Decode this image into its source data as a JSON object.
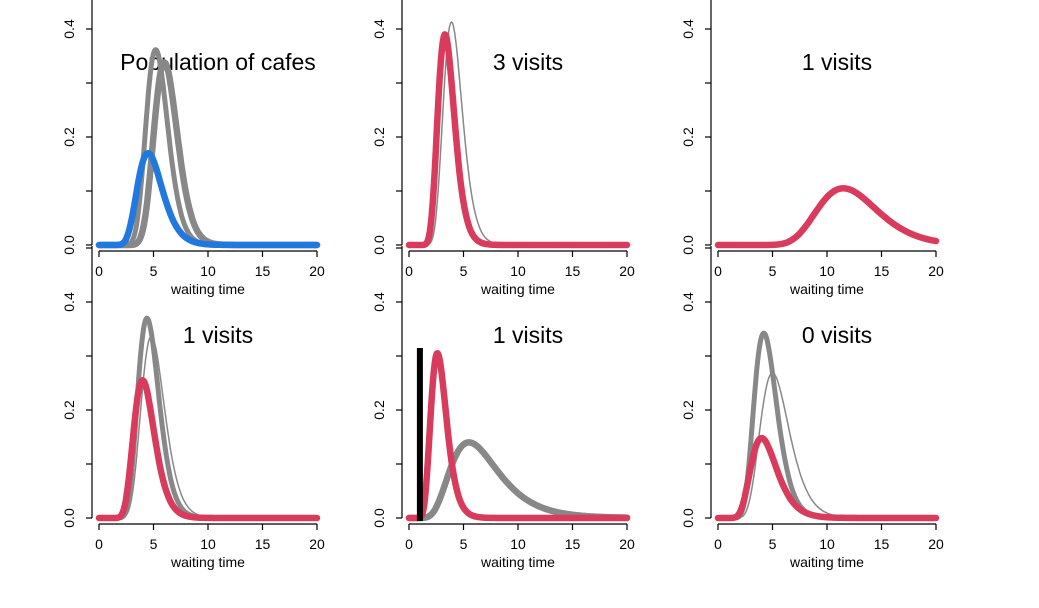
{
  "colors": {
    "population": "#2179e0",
    "posterior": "#d83b5c",
    "prior": "#888888",
    "observation": "#000000"
  },
  "chart_data": [
    {
      "type": "line",
      "title": "Population of cafes",
      "xlabel": "waiting time",
      "xlim": [
        0,
        20
      ],
      "ylim": [
        0,
        0.5
      ],
      "xticks": [
        "0",
        "5",
        "10",
        "15",
        "20"
      ],
      "yticks": [
        "0.0",
        "0.2",
        "0.4"
      ],
      "series": [
        {
          "role": "prior-wide",
          "color": "#888888",
          "shape": [
            6,
            1.2
          ]
        },
        {
          "role": "prior-narrow",
          "color": "#888888",
          "shape": [
            5.2,
            1.2
          ]
        },
        {
          "role": "population",
          "color": "#2179e0",
          "shape": [
            4.5,
            1.4
          ],
          "peak": 0.17
        }
      ],
      "observations": []
    },
    {
      "type": "line",
      "title": "3 visits",
      "xlabel": "waiting time",
      "xlim": [
        0,
        20
      ],
      "ylim": [
        0,
        0.5
      ],
      "xticks": [
        "0",
        "5",
        "10",
        "15",
        "20"
      ],
      "yticks": [
        "0.0",
        "0.2",
        "0.4"
      ],
      "series": [
        {
          "role": "prior-thin",
          "color": "#888888",
          "shape": [
            3.9,
            1.1
          ]
        },
        {
          "role": "posterior",
          "color": "#d83b5c",
          "shape": [
            3.3,
            1.0
          ],
          "peak": 0.39
        }
      ],
      "observations": []
    },
    {
      "type": "line",
      "title": "1 visits",
      "xlabel": "waiting time",
      "xlim": [
        0,
        20
      ],
      "ylim": [
        0,
        0.5
      ],
      "xticks": [
        "0",
        "5",
        "10",
        "15",
        "20"
      ],
      "yticks": [
        "0.0",
        "0.2",
        "0.4"
      ],
      "series": [
        {
          "role": "posterior",
          "color": "#d83b5c",
          "shape": [
            11.5,
            3.0
          ],
          "peak": 0.105
        }
      ],
      "observations": []
    },
    {
      "type": "line",
      "title": "1 visits",
      "xlabel": "waiting time",
      "xlim": [
        0,
        20
      ],
      "ylim": [
        0,
        0.5
      ],
      "xticks": [
        "0",
        "5",
        "10",
        "15",
        "20"
      ],
      "yticks": [
        "0.0",
        "0.2",
        "0.4"
      ],
      "series": [
        {
          "role": "prior-thin",
          "color": "#888888",
          "shape": [
            4.8,
            1.3
          ]
        },
        {
          "role": "prior-narrow",
          "color": "#888888",
          "shape": [
            4.4,
            1.2
          ]
        },
        {
          "role": "posterior",
          "color": "#d83b5c",
          "shape": [
            4.0,
            1.2
          ],
          "peak": 0.255
        }
      ],
      "observations": []
    },
    {
      "type": "line",
      "title": "1 visits",
      "xlabel": "waiting time",
      "xlim": [
        0,
        20
      ],
      "ylim": [
        0,
        0.5
      ],
      "xticks": [
        "0",
        "5",
        "10",
        "15",
        "20"
      ],
      "yticks": [
        "0.0",
        "0.2",
        "0.4"
      ],
      "series": [
        {
          "role": "prior-wide",
          "color": "#888888",
          "shape": [
            5.5,
            2.6
          ],
          "peak": 0.14
        },
        {
          "role": "posterior",
          "color": "#d83b5c",
          "shape": [
            2.6,
            1.0
          ],
          "peak": 0.305
        }
      ],
      "observations": [
        1.0
      ]
    },
    {
      "type": "line",
      "title": "0 visits",
      "xlabel": "waiting time",
      "xlim": [
        0,
        20
      ],
      "ylim": [
        0,
        0.5
      ],
      "xticks": [
        "0",
        "5",
        "10",
        "15",
        "20"
      ],
      "yticks": [
        "0.0",
        "0.2",
        "0.4"
      ],
      "series": [
        {
          "role": "prior-thin",
          "color": "#888888",
          "shape": [
            5.0,
            1.6
          ]
        },
        {
          "role": "prior-narrow",
          "color": "#888888",
          "shape": [
            4.2,
            1.3
          ]
        },
        {
          "role": "posterior",
          "color": "#d83b5c",
          "shape": [
            4.0,
            1.5
          ],
          "peak": 0.148
        }
      ],
      "observations": []
    }
  ]
}
